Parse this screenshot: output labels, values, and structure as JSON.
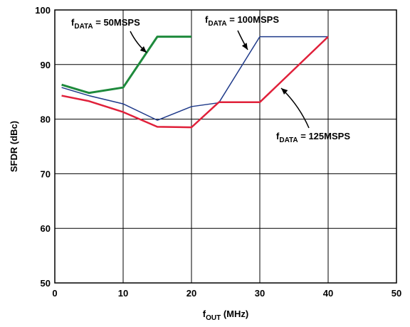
{
  "chart_data": {
    "type": "line",
    "xlabel": {
      "main": "f",
      "sub": "OUT",
      "rest": " (MHz)"
    },
    "ylabel": "SFDR (dBc)",
    "xlim": [
      0,
      50
    ],
    "ylim": [
      50,
      100
    ],
    "xticks": [
      "0",
      "10",
      "20",
      "30",
      "40",
      "50"
    ],
    "yticks": [
      "50",
      "60",
      "70",
      "80",
      "90",
      "100"
    ],
    "grid": true,
    "series": [
      {
        "name": "fDATA = 50MSPS",
        "color": "#1e8a3c",
        "x": [
          1,
          5,
          10,
          15,
          20
        ],
        "y": [
          86.3,
          84.8,
          85.8,
          95.1,
          95.1
        ]
      },
      {
        "name": "fDATA = 100MSPS",
        "color": "#1f3a8a",
        "x": [
          1,
          5,
          10,
          15,
          20,
          24,
          30,
          40
        ],
        "y": [
          85.8,
          84.3,
          82.8,
          79.8,
          82.3,
          83.0,
          95.1,
          95.1
        ]
      },
      {
        "name": "fDATA = 125MSPS",
        "color": "#e0203a",
        "x": [
          1,
          5,
          10,
          15,
          20,
          24,
          30,
          40
        ],
        "y": [
          84.3,
          83.3,
          81.3,
          78.6,
          78.5,
          83.1,
          83.1,
          95.1
        ]
      }
    ],
    "annotations": [
      {
        "main": "f",
        "sub": "DATA",
        "rest": " = 50MSPS"
      },
      {
        "main": "f",
        "sub": "DATA",
        "rest": " = 100MSPS"
      },
      {
        "main": "f",
        "sub": "DATA",
        "rest": " = 125MSPS"
      }
    ]
  }
}
